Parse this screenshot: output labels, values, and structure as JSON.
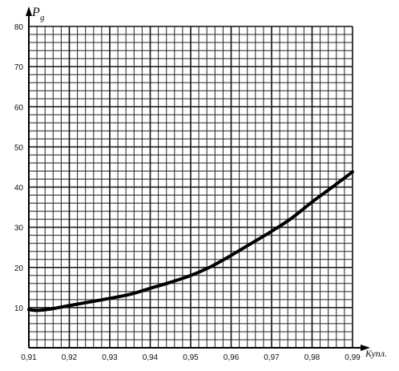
{
  "chart_data": {
    "type": "line",
    "title": "",
    "ylabel": "P",
    "ylabel_subscript": "g",
    "xlabel": "Купл.",
    "xlim": [
      0.91,
      0.99
    ],
    "ylim": [
      0,
      80
    ],
    "x_ticks": [
      "0,91",
      "0,92",
      "0,93",
      "0,94",
      "0,95",
      "0,96",
      "0,97",
      "0,98",
      "0,99"
    ],
    "y_ticks": [
      "10",
      "20",
      "30",
      "40",
      "50",
      "60",
      "70",
      "80"
    ],
    "grid": true,
    "series": [
      {
        "x": [
          0.91,
          0.912,
          0.915,
          0.92,
          0.925,
          0.93,
          0.935,
          0.94,
          0.945,
          0.95,
          0.955,
          0.96,
          0.965,
          0.97,
          0.975,
          0.98,
          0.985,
          0.99
        ],
        "y": [
          9.5,
          9.3,
          9.6,
          10.5,
          11.4,
          12.3,
          13.3,
          14.8,
          16.3,
          18.0,
          20.2,
          23.0,
          26.0,
          29.0,
          32.3,
          36.3,
          40.0,
          43.8
        ]
      }
    ]
  }
}
